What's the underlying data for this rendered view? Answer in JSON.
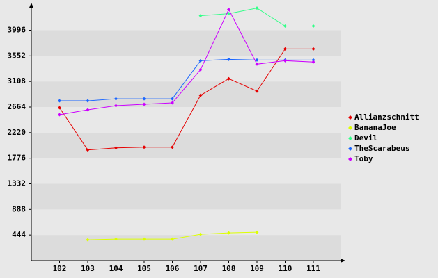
{
  "chart_data": {
    "type": "line",
    "categories": [
      "102",
      "103",
      "104",
      "105",
      "106",
      "107",
      "108",
      "109",
      "110",
      "111"
    ],
    "series": [
      {
        "name": "Allianzschnitt",
        "color": "#e60000",
        "values": [
          2652,
          1920,
          1956,
          1968,
          1968,
          2868,
          3156,
          2940,
          3672,
          3672
        ]
      },
      {
        "name": "BananaJoe",
        "color": "#ddff00",
        "values": [
          null,
          360,
          372,
          372,
          372,
          456,
          480,
          492,
          null,
          null
        ]
      },
      {
        "name": "Devil",
        "color": "#33ff88",
        "values": [
          null,
          null,
          null,
          null,
          null,
          4248,
          4284,
          4380,
          4068,
          4068
        ]
      },
      {
        "name": "TheScarabeus",
        "color": "#1a66ff",
        "values": [
          2772,
          2772,
          2808,
          2808,
          2808,
          3468,
          3492,
          3480,
          3480,
          3480
        ]
      },
      {
        "name": "Toby",
        "color": "#cc00ff",
        "values": [
          2532,
          2616,
          2688,
          2712,
          2736,
          3312,
          4356,
          3408,
          3468,
          3444
        ]
      }
    ],
    "ylim": [
      0,
      4400
    ],
    "yticks": [
      444,
      888,
      1332,
      1776,
      2220,
      2664,
      3108,
      3552,
      3996
    ],
    "grid": true
  }
}
